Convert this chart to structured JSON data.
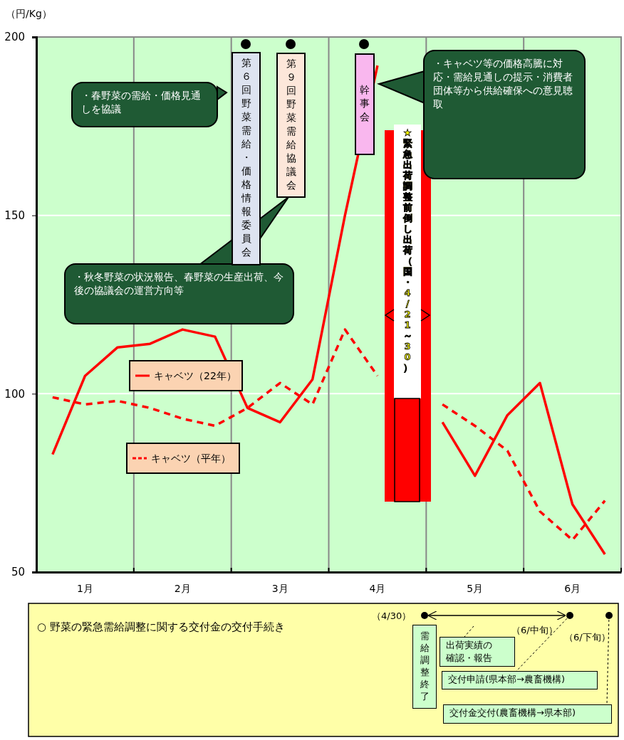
{
  "chart_data": {
    "type": "line",
    "ylabel": "（円/Kg）",
    "categories": [
      null,
      "1月",
      null,
      null,
      "2月",
      null,
      null,
      "3月",
      null,
      null,
      "4月",
      null,
      null,
      "5月",
      null,
      null,
      "6月",
      null
    ],
    "series": [
      {
        "name": "キャベツ（22年）",
        "color": "#ff0000",
        "line_style": "solid",
        "values": [
          83,
          105,
          113,
          114,
          118,
          116,
          96,
          92,
          104,
          150,
          192,
          null,
          92,
          77,
          94,
          103,
          69,
          55
        ]
      },
      {
        "name": "キャベツ（平年）",
        "color": "#ff0000",
        "line_style": "dashed",
        "values": [
          99,
          97,
          98,
          96,
          93,
          91,
          96,
          103,
          97,
          118,
          105,
          null,
          97,
          91,
          84,
          67,
          59,
          70
        ]
      }
    ],
    "ylim": [
      50,
      200
    ],
    "yticks": [
      50,
      100,
      150,
      200
    ],
    "grid": true,
    "legend": "left",
    "annotations": [
      "・春野菜の需給・価格見通しを協議",
      "・秋冬野菜の状況報告、春野菜の生産出荷、今後の協議会の運営方向等",
      "・キャベツ等の価格高騰に対応・需給見通しの提示・消費者団体等から供給確保への意見聴取",
      "第６回野菜需給・価格情報委員会",
      "第９回野菜需給協議会",
      "幹事会",
      "★緊急出荷調整前倒し出荷（国・4/21～30）",
      "○ 野菜の緊急需給調整に関する交付金の交付手続き",
      "（4/30）",
      "（6/中旬）",
      "（6/下旬）",
      "需給調整終了",
      "出荷実績の確認・報告",
      "交付申請(県本部→農畜機構)",
      "交付金交付(農畜機構→県本部)"
    ]
  }
}
